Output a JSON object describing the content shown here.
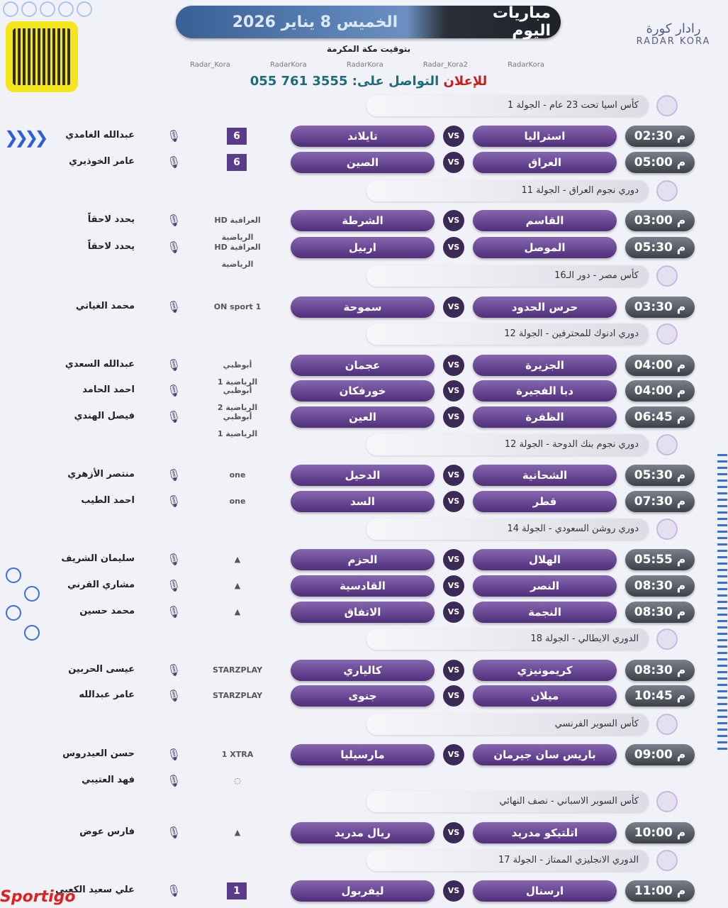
{
  "header": {
    "title": "مباريات اليوم",
    "date": "الخميس 8 يناير 2026",
    "timezone": "بتوقيت مكة المكرمة",
    "socials": [
      "Radar_Kora",
      "RadarKora",
      "RadarKora",
      "Radar_Kora2",
      "RadarKora"
    ],
    "ad_label": "للإعلان",
    "ad_text": "التواصل على:",
    "phone": "055 761 3555",
    "logo_ar": "رادار كورة",
    "logo_en": "RADAR KORA"
  },
  "footer_brand": "Sportigo",
  "sections": [
    {
      "league": "كأس اسيا تحت 23 عام - الجولة 1",
      "matches": [
        {
          "time": "02:30 م",
          "home": "استراليا",
          "away": "تايلاند",
          "channel": "6",
          "commentator": "عبدالله الغامدي"
        },
        {
          "time": "05:00 م",
          "home": "العراق",
          "away": "الصين",
          "channel": "6",
          "commentator": "عامر الخوذيري"
        }
      ]
    },
    {
      "league": "دوري نجوم العراق - الجولة 11",
      "matches": [
        {
          "time": "03:00 م",
          "home": "القاسم",
          "away": "الشرطة",
          "channel": "HD العراقية الرياضية",
          "commentator": "يحدد لاحقاً"
        },
        {
          "time": "05:30 م",
          "home": "الموصل",
          "away": "اربيل",
          "channel": "HD العراقية الرياضية",
          "commentator": "يحدد لاحقاً"
        }
      ]
    },
    {
      "league": "كأس مصر - دور الـ16",
      "matches": [
        {
          "time": "03:30 م",
          "home": "حرس الحدود",
          "away": "سموحة",
          "channel": "ON sport 1",
          "commentator": "محمد الغياتي"
        }
      ]
    },
    {
      "league": "دوري ادنوك للمحترفين - الجولة 12",
      "matches": [
        {
          "time": "04:00 م",
          "home": "الجزيرة",
          "away": "عجمان",
          "channel": "أبوظبي الرياضية 1",
          "commentator": "عبدالله السعدي"
        },
        {
          "time": "04:00 م",
          "home": "دبا الفجيرة",
          "away": "خورفكان",
          "channel": "أبوظبي الرياضية 2",
          "commentator": "احمد الحامد"
        },
        {
          "time": "06:45 م",
          "home": "الظفرة",
          "away": "العين",
          "channel": "أبوظبي الرياضية 1",
          "commentator": "فيصل الهندي"
        }
      ]
    },
    {
      "league": "دوري نجوم بنك الدوحة - الجولة 12",
      "matches": [
        {
          "time": "05:30 م",
          "home": "الشحانية",
          "away": "الدحيل",
          "channel": "one",
          "commentator": "منتصر الأزهري"
        },
        {
          "time": "07:30 م",
          "home": "قطر",
          "away": "السد",
          "channel": "one",
          "commentator": "احمد الطيب"
        }
      ]
    },
    {
      "league": "دوري روشن السعودي - الجولة 14",
      "matches": [
        {
          "time": "05:55 م",
          "home": "الهلال",
          "away": "الحزم",
          "channel": "▲",
          "commentator": "سليمان الشريف"
        },
        {
          "time": "08:30 م",
          "home": "النصر",
          "away": "القادسية",
          "channel": "▲",
          "commentator": "مشاري القرني"
        },
        {
          "time": "08:30 م",
          "home": "النجمة",
          "away": "الاتفاق",
          "channel": "▲",
          "commentator": "محمد حسين"
        }
      ]
    },
    {
      "league": "الدوري الايطالي - الجولة 18",
      "matches": [
        {
          "time": "08:30 م",
          "home": "كريمونيزي",
          "away": "كالياري",
          "channel": "STARZPLAY",
          "commentator": "عيسى الحربين"
        },
        {
          "time": "10:45 م",
          "home": "ميلان",
          "away": "جنوى",
          "channel": "STARZPLAY",
          "commentator": "عامر عبدالله"
        }
      ]
    },
    {
      "league": "كأس السوبر الفرنسي",
      "matches": [
        {
          "time": "09:00 م",
          "home": "باريس سان جيرمان",
          "away": "مارسيليا",
          "channel": "1 XTRA",
          "commentator": "حسن العيدروس"
        },
        {
          "channel": "◌",
          "commentator": "فهد العتيبي"
        }
      ]
    },
    {
      "league": "كأس السوبر الاسباني - نصف النهائي",
      "matches": [
        {
          "time": "10:00 م",
          "home": "اتلتيكو مدريد",
          "away": "ريال مدريد",
          "channel": "▲",
          "commentator": "فارس عوض"
        }
      ]
    },
    {
      "league": "الدوري الانجليزي الممتاز - الجولة 17",
      "matches": [
        {
          "time": "11:00 م",
          "home": "ارسنال",
          "away": "ليفربول",
          "channel": "1",
          "commentator": "علي سعيد الكعبي"
        }
      ]
    }
  ]
}
